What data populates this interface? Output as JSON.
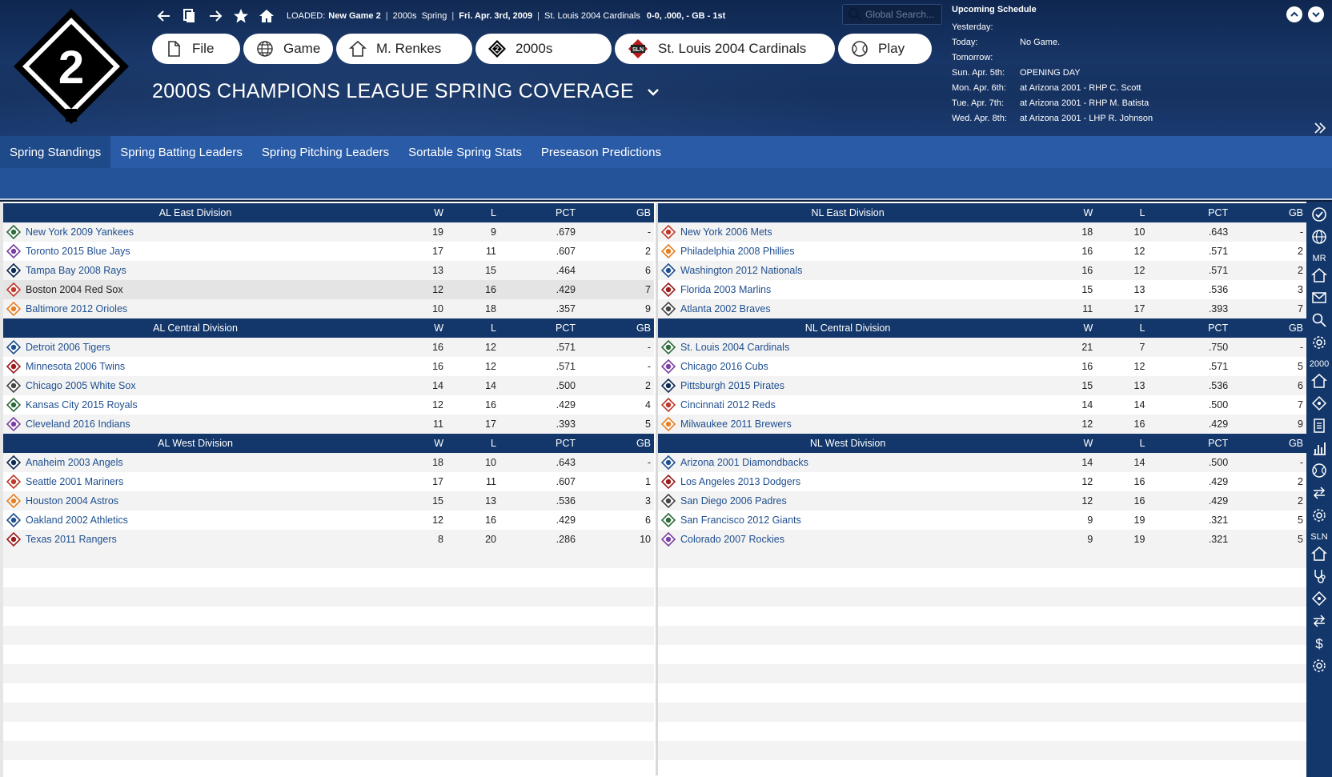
{
  "header": {
    "loaded_label": "LOADED:",
    "loaded_game": "New Game 2",
    "era": "2000s",
    "phase": "Spring",
    "date": "Fri. Apr. 3rd, 2009",
    "team": "St. Louis 2004 Cardinals",
    "record": "0-0, .000, - GB - 1st",
    "search_placeholder": "Global Search...",
    "logo_number": "2"
  },
  "main_buttons": {
    "file": "File",
    "game": "Game",
    "manager": "M. Renkes",
    "league": "2000s",
    "team": "St. Louis 2004 Cardinals",
    "play": "Play"
  },
  "page_title": "2000s Champions League Spring Coverage",
  "schedule": {
    "title": "Upcoming Schedule",
    "rows": [
      {
        "day": "Yesterday:",
        "value": ""
      },
      {
        "day": "Today:",
        "value": "No Game."
      },
      {
        "day": "Tomorrow:",
        "value": ""
      },
      {
        "day": "Sun. Apr. 5th:",
        "value": "OPENING DAY"
      },
      {
        "day": "Mon. Apr. 6th:",
        "value": "at Arizona 2001 - RHP C. Scott"
      },
      {
        "day": "Tue. Apr. 7th:",
        "value": "at Arizona 2001 - RHP M. Batista"
      },
      {
        "day": "Wed. Apr. 8th:",
        "value": "at Arizona 2001 - LHP R. Johnson"
      }
    ]
  },
  "tabs": [
    {
      "label": "Spring Standings",
      "active": true
    },
    {
      "label": "Spring Batting Leaders",
      "active": false
    },
    {
      "label": "Spring Pitching Leaders",
      "active": false
    },
    {
      "label": "Sortable Spring Stats",
      "active": false
    },
    {
      "label": "Preseason Predictions",
      "active": false
    }
  ],
  "columns": {
    "w": "W",
    "l": "L",
    "pct": "PCT",
    "gb": "GB"
  },
  "standings": {
    "left": [
      {
        "division": "AL East Division",
        "teams": [
          {
            "name": "New York 2009 Yankees",
            "w": "19",
            "l": "9",
            "pct": ".679",
            "gb": "-"
          },
          {
            "name": "Toronto 2015 Blue Jays",
            "w": "17",
            "l": "11",
            "pct": ".607",
            "gb": "2"
          },
          {
            "name": "Tampa Bay 2008 Rays",
            "w": "13",
            "l": "15",
            "pct": ".464",
            "gb": "6"
          },
          {
            "name": "Boston 2004 Red Sox",
            "w": "12",
            "l": "16",
            "pct": ".429",
            "gb": "7"
          },
          {
            "name": "Baltimore 2012 Orioles",
            "w": "10",
            "l": "18",
            "pct": ".357",
            "gb": "9"
          }
        ]
      },
      {
        "division": "AL Central Division",
        "teams": [
          {
            "name": "Detroit 2006 Tigers",
            "w": "16",
            "l": "12",
            "pct": ".571",
            "gb": "-"
          },
          {
            "name": "Minnesota 2006 Twins",
            "w": "16",
            "l": "12",
            "pct": ".571",
            "gb": "-"
          },
          {
            "name": "Chicago 2005 White Sox",
            "w": "14",
            "l": "14",
            "pct": ".500",
            "gb": "2"
          },
          {
            "name": "Kansas City 2015 Royals",
            "w": "12",
            "l": "16",
            "pct": ".429",
            "gb": "4"
          },
          {
            "name": "Cleveland 2016 Indians",
            "w": "11",
            "l": "17",
            "pct": ".393",
            "gb": "5"
          }
        ]
      },
      {
        "division": "AL West Division",
        "teams": [
          {
            "name": "Anaheim 2003 Angels",
            "w": "18",
            "l": "10",
            "pct": ".643",
            "gb": "-"
          },
          {
            "name": "Seattle 2001 Mariners",
            "w": "17",
            "l": "11",
            "pct": ".607",
            "gb": "1"
          },
          {
            "name": "Houston 2004 Astros",
            "w": "15",
            "l": "13",
            "pct": ".536",
            "gb": "3"
          },
          {
            "name": "Oakland 2002 Athletics",
            "w": "12",
            "l": "16",
            "pct": ".429",
            "gb": "6"
          },
          {
            "name": "Texas 2011 Rangers",
            "w": "8",
            "l": "20",
            "pct": ".286",
            "gb": "10"
          }
        ]
      }
    ],
    "right": [
      {
        "division": "NL East Division",
        "teams": [
          {
            "name": "New York 2006 Mets",
            "w": "18",
            "l": "10",
            "pct": ".643",
            "gb": "-"
          },
          {
            "name": "Philadelphia 2008 Phillies",
            "w": "16",
            "l": "12",
            "pct": ".571",
            "gb": "2"
          },
          {
            "name": "Washington 2012 Nationals",
            "w": "16",
            "l": "12",
            "pct": ".571",
            "gb": "2"
          },
          {
            "name": "Florida 2003 Marlins",
            "w": "15",
            "l": "13",
            "pct": ".536",
            "gb": "3"
          },
          {
            "name": "Atlanta 2002 Braves",
            "w": "11",
            "l": "17",
            "pct": ".393",
            "gb": "7"
          }
        ]
      },
      {
        "division": "NL Central Division",
        "teams": [
          {
            "name": "St. Louis 2004 Cardinals",
            "w": "21",
            "l": "7",
            "pct": ".750",
            "gb": "-"
          },
          {
            "name": "Chicago 2016 Cubs",
            "w": "16",
            "l": "12",
            "pct": ".571",
            "gb": "5"
          },
          {
            "name": "Pittsburgh 2015 Pirates",
            "w": "15",
            "l": "13",
            "pct": ".536",
            "gb": "6"
          },
          {
            "name": "Cincinnati 2012 Reds",
            "w": "14",
            "l": "14",
            "pct": ".500",
            "gb": "7"
          },
          {
            "name": "Milwaukee 2011 Brewers",
            "w": "12",
            "l": "16",
            "pct": ".429",
            "gb": "9"
          }
        ]
      },
      {
        "division": "NL West Division",
        "teams": [
          {
            "name": "Arizona 2001 Diamondbacks",
            "w": "14",
            "l": "14",
            "pct": ".500",
            "gb": "-"
          },
          {
            "name": "Los Angeles 2013 Dodgers",
            "w": "12",
            "l": "16",
            "pct": ".429",
            "gb": "2"
          },
          {
            "name": "San Diego 2006 Padres",
            "w": "12",
            "l": "16",
            "pct": ".429",
            "gb": "2"
          },
          {
            "name": "San Francisco 2012 Giants",
            "w": "9",
            "l": "19",
            "pct": ".321",
            "gb": "5"
          },
          {
            "name": "Colorado 2007 Rockies",
            "w": "9",
            "l": "19",
            "pct": ".321",
            "gb": "5"
          }
        ]
      }
    ]
  },
  "sidebar_labels": {
    "manager": "MR",
    "league": "2000",
    "team": "SLN"
  },
  "colors": {
    "header_bg": "#173566",
    "tab_bar": "#2a5ba6",
    "division_header": "#13376a",
    "team_link": "#1f4f8f",
    "row_alt": "#f3f3f3"
  }
}
